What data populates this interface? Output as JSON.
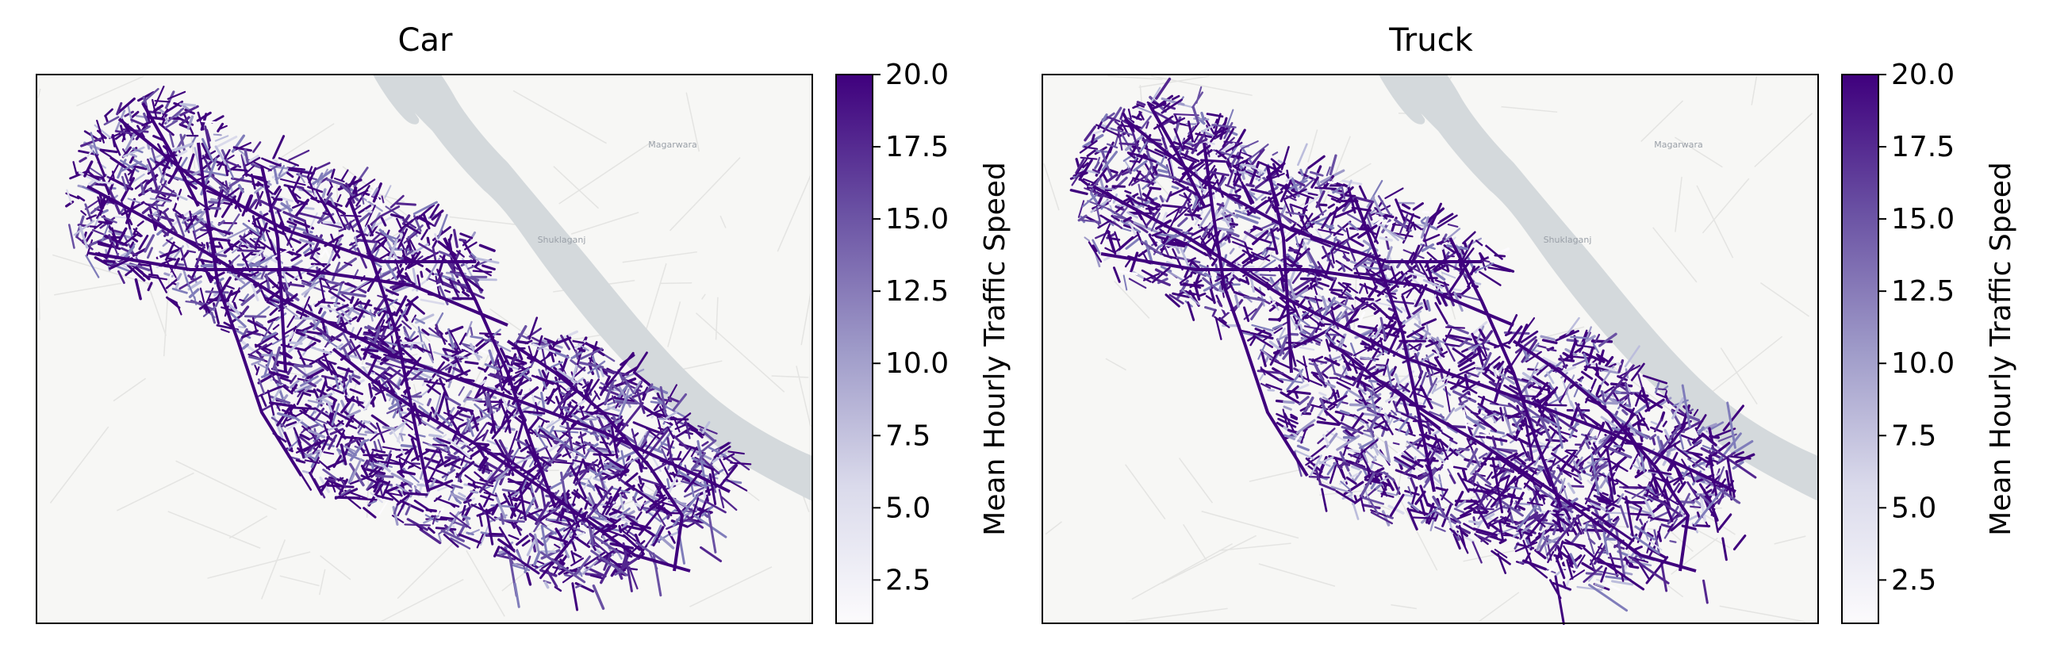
{
  "panels": [
    {
      "title": "Car",
      "place_labels": [
        "Magarwara",
        "Shuklaganj"
      ],
      "colorbar": {
        "label": "Mean Hourly Traffic Speed",
        "ticks": [
          "2.5",
          "5.0",
          "7.5",
          "10.0",
          "12.5",
          "15.0",
          "17.5",
          "20.0"
        ],
        "range": [
          1.0,
          20.0
        ]
      }
    },
    {
      "title": "Truck",
      "place_labels": [
        "Magarwara",
        "Shuklaganj"
      ],
      "colorbar": {
        "label": "Mean Hourly Traffic Speed",
        "ticks": [
          "2.5",
          "5.0",
          "7.5",
          "10.0",
          "12.5",
          "15.0",
          "17.5",
          "20.0"
        ],
        "range": [
          1.0,
          20.0
        ]
      }
    }
  ],
  "colormap": {
    "name": "Purples",
    "low": "#fcfbfd",
    "mid": "#9e9ac8",
    "high": "#3f007d"
  },
  "colors": {
    "river": "#d4d9dc",
    "land": "#f7f7f5",
    "minor_roads": "#e6e6e4"
  }
}
